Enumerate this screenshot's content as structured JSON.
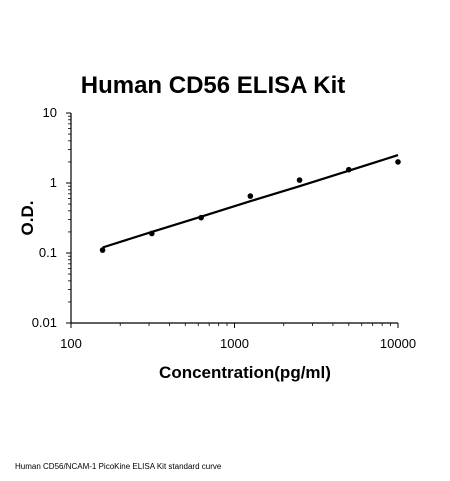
{
  "chart_data": {
    "type": "scatter",
    "title": "Human CD56 ELISA Kit",
    "xlabel": "Concentration(pg/ml)",
    "ylabel": "O.D.",
    "x_scale": "log",
    "y_scale": "log",
    "xlim": [
      100,
      10000
    ],
    "ylim": [
      0.01,
      10
    ],
    "x_ticks": [
      {
        "value": 100,
        "label": "100"
      },
      {
        "value": 1000,
        "label": "1000"
      },
      {
        "value": 10000,
        "label": "10000"
      }
    ],
    "y_ticks": [
      {
        "value": 0.01,
        "label": "0.01"
      },
      {
        "value": 0.1,
        "label": "0.1"
      },
      {
        "value": 1,
        "label": "1"
      },
      {
        "value": 10,
        "label": "10"
      }
    ],
    "grid": false,
    "legend": "none",
    "points": [
      {
        "x": 156,
        "y": 0.11
      },
      {
        "x": 312,
        "y": 0.19
      },
      {
        "x": 625,
        "y": 0.32
      },
      {
        "x": 1250,
        "y": 0.65
      },
      {
        "x": 2500,
        "y": 1.1
      },
      {
        "x": 5000,
        "y": 1.55
      },
      {
        "x": 10000,
        "y": 2.0
      }
    ],
    "fit_line": {
      "x": [
        156,
        312,
        625,
        1250,
        2500,
        5000,
        10000
      ],
      "y": [
        0.12,
        0.2,
        0.33,
        0.55,
        0.9,
        1.5,
        2.5
      ]
    },
    "colors": {
      "points": "#000000",
      "line": "#000000",
      "axes": "#000000"
    }
  },
  "caption": "Human CD56/NCAM-1 PicoKine ELISA Kit standard curve"
}
